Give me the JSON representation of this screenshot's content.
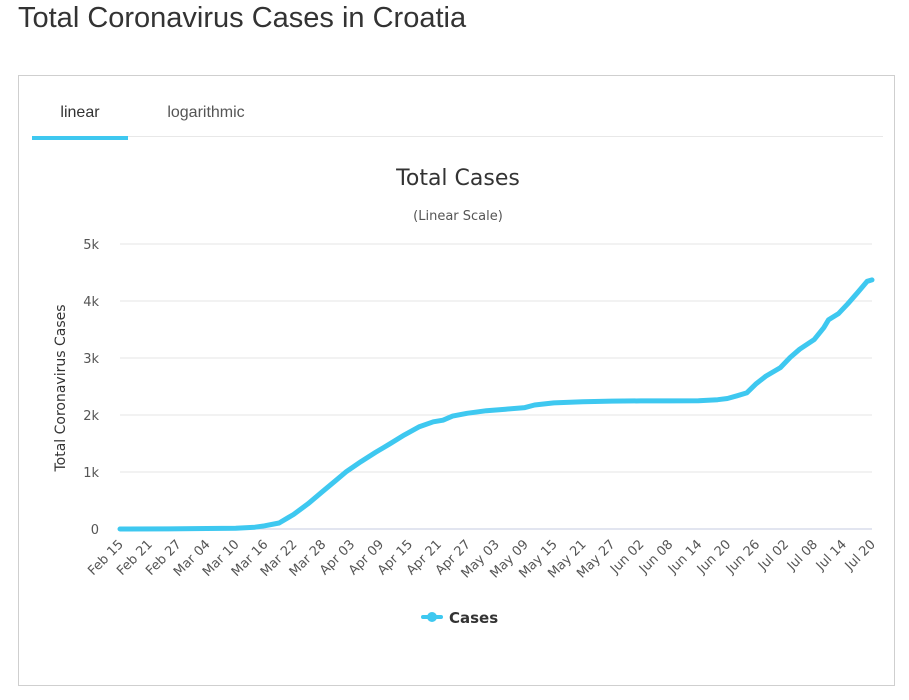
{
  "page": {
    "title": "Total Coronavirus Cases in Croatia"
  },
  "tabs": [
    {
      "label": "linear",
      "active": true
    },
    {
      "label": "logarithmic",
      "active": false
    }
  ],
  "chart_data": {
    "type": "line",
    "title": "Total Cases",
    "subtitle": "(Linear Scale)",
    "ylabel": "Total Coronavirus Cases",
    "xlabel": "",
    "ylim": [
      0,
      5000
    ],
    "yticks": [
      {
        "value": 0,
        "label": "0"
      },
      {
        "value": 1000,
        "label": "1k"
      },
      {
        "value": 2000,
        "label": "2k"
      },
      {
        "value": 3000,
        "label": "3k"
      },
      {
        "value": 4000,
        "label": "4k"
      },
      {
        "value": 5000,
        "label": "5k"
      }
    ],
    "xticks": [
      "Feb 15",
      "Feb 21",
      "Feb 27",
      "Mar 04",
      "Mar 10",
      "Mar 16",
      "Mar 22",
      "Mar 28",
      "Apr 03",
      "Apr 09",
      "Apr 15",
      "Apr 21",
      "Apr 27",
      "May 03",
      "May 09",
      "May 15",
      "May 21",
      "May 27",
      "Jun 02",
      "Jun 08",
      "Jun 14",
      "Jun 20",
      "Jun 26",
      "Jul 02",
      "Jul 08",
      "Jul 14",
      "Jul 20"
    ],
    "grid": true,
    "legend": "bottom-center",
    "color": "#3ec8f0",
    "series": [
      {
        "name": "Cases",
        "points": [
          [
            "Feb 15",
            0
          ],
          [
            "Feb 25",
            2
          ],
          [
            "Mar 04",
            9
          ],
          [
            "Mar 10",
            12
          ],
          [
            "Mar 14",
            31
          ],
          [
            "Mar 16",
            56
          ],
          [
            "Mar 19",
            105
          ],
          [
            "Mar 21",
            206
          ],
          [
            "Mar 22",
            254
          ],
          [
            "Mar 25",
            442
          ],
          [
            "Mar 28",
            657
          ],
          [
            "Mar 31",
            867
          ],
          [
            "Apr 02",
            1011
          ],
          [
            "Apr 05",
            1182
          ],
          [
            "Apr 08",
            1343
          ],
          [
            "Apr 11",
            1495
          ],
          [
            "Apr 14",
            1650
          ],
          [
            "Apr 17",
            1791
          ],
          [
            "Apr 20",
            1881
          ],
          [
            "Apr 22",
            1908
          ],
          [
            "Apr 24",
            1981
          ],
          [
            "Apr 27",
            2030
          ],
          [
            "May 01",
            2076
          ],
          [
            "May 05",
            2101
          ],
          [
            "May 09",
            2130
          ],
          [
            "May 11",
            2176
          ],
          [
            "May 15",
            2213
          ],
          [
            "May 21",
            2232
          ],
          [
            "May 27",
            2244
          ],
          [
            "Jun 02",
            2247
          ],
          [
            "Jun 08",
            2247
          ],
          [
            "Jun 14",
            2249
          ],
          [
            "Jun 18",
            2269
          ],
          [
            "Jun 20",
            2290
          ],
          [
            "Jun 22",
            2336
          ],
          [
            "Jun 24",
            2388
          ],
          [
            "Jun 26",
            2550
          ],
          [
            "Jun 28",
            2683
          ],
          [
            "Jul 01",
            2831
          ],
          [
            "Jul 03",
            3008
          ],
          [
            "Jul 05",
            3155
          ],
          [
            "Jul 08",
            3322
          ],
          [
            "Jul 10",
            3532
          ],
          [
            "Jul 11",
            3672
          ],
          [
            "Jul 13",
            3775
          ],
          [
            "Jul 15",
            3953
          ],
          [
            "Jul 17",
            4145
          ],
          [
            "Jul 19",
            4345
          ],
          [
            "Jul 20",
            4370
          ]
        ]
      }
    ]
  }
}
